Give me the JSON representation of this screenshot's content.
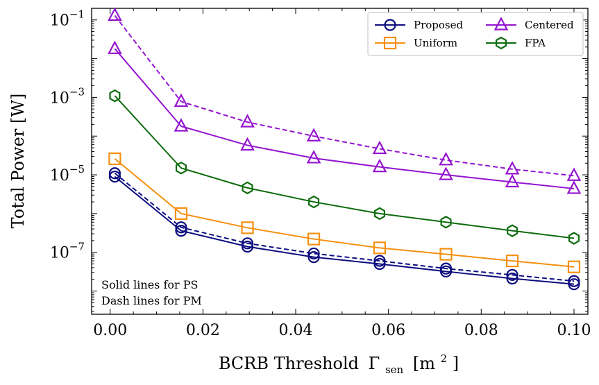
{
  "chart_data": {
    "type": "line",
    "title": "",
    "xlabel": "BCRB Threshold",
    "xlabel_symbol": "Γ",
    "xlabel_subscript": "sen",
    "xlabel_unit": "[m",
    "xlabel_unit_power": "2",
    "xlabel_unit_close": "]",
    "ylabel": "Total Power [W]",
    "xlim": [
      -0.004,
      0.103
    ],
    "ylim_log10": [
      -8.6,
      -0.7
    ],
    "y_scale": "log",
    "grid": false,
    "legend_position": "top-right",
    "x_ticks": [
      0.0,
      0.02,
      0.04,
      0.06,
      0.08,
      0.1
    ],
    "x_tick_labels": [
      "0.00",
      "0.02",
      "0.04",
      "0.06",
      "0.08",
      "0.10"
    ],
    "y_ticks": [
      {
        "exp": -1,
        "base": "10",
        "sup": "−1"
      },
      {
        "exp": -3,
        "base": "10",
        "sup": "−3"
      },
      {
        "exp": -5,
        "base": "10",
        "sup": "−5"
      },
      {
        "exp": -7,
        "base": "10",
        "sup": "−7"
      }
    ],
    "x": [
      0.001,
      0.0153,
      0.0296,
      0.0439,
      0.0581,
      0.0724,
      0.0867,
      0.1
    ],
    "series": [
      {
        "name": "Proposed",
        "color": "#0d0d80",
        "marker": "circle",
        "linestyle": "solid",
        "values": [
          9e-06,
          3.6e-07,
          1.4e-07,
          7.5e-08,
          5e-08,
          3.2e-08,
          2.1e-08,
          1.5e-08
        ]
      },
      {
        "name": "",
        "color": "#0d0d80",
        "marker": "circle",
        "linestyle": "dashed",
        "values": [
          1.1e-05,
          4.4e-07,
          1.7e-07,
          9.3e-08,
          6e-08,
          3.8e-08,
          2.6e-08,
          1.8e-08
        ]
      },
      {
        "name": "Uniform",
        "color": "#f5900f",
        "marker": "square",
        "linestyle": "solid",
        "values": [
          2.6e-05,
          1e-06,
          4.3e-07,
          2.2e-07,
          1.3e-07,
          8.9e-08,
          6e-08,
          4.2e-08
        ]
      },
      {
        "name": "Centered",
        "color": "#9414d0",
        "marker": "triangle",
        "linestyle": "solid",
        "values": [
          0.018,
          0.00018,
          5.8e-05,
          2.7e-05,
          1.6e-05,
          1e-05,
          6.5e-06,
          4.4e-06
        ]
      },
      {
        "name": "",
        "color": "#9414d0",
        "marker": "triangle",
        "linestyle": "dashed",
        "values": [
          0.13,
          0.00078,
          0.00023,
          0.0001,
          4.7e-05,
          2.4e-05,
          1.4e-05,
          9.5e-06
        ]
      },
      {
        "name": "FPA",
        "color": "#0d6b0d",
        "marker": "hexagon",
        "linestyle": "solid",
        "values": [
          0.0011,
          1.5e-05,
          4.6e-06,
          2e-06,
          1e-06,
          6e-07,
          3.6e-07,
          2.3e-07
        ]
      }
    ],
    "annotations": [
      "Solid lines for PS",
      "Dash lines for PM"
    ]
  }
}
